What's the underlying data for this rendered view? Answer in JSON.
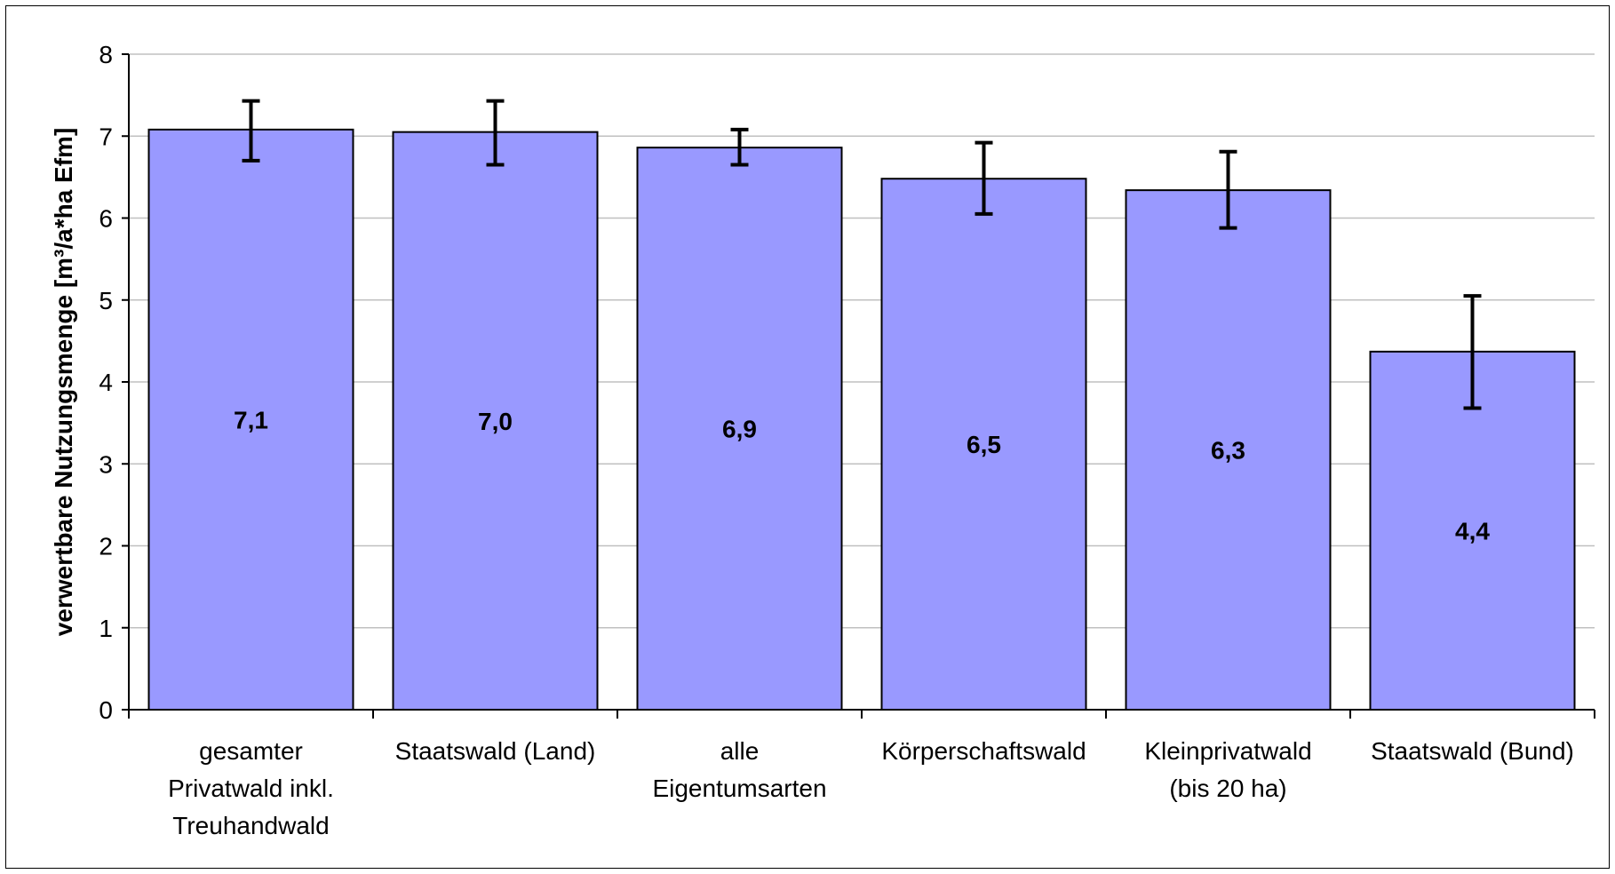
{
  "chart_data": {
    "type": "bar",
    "title": "",
    "xlabel": "",
    "ylabel": "verwertbare Nutzungsmenge [m³/a*ha Efm]",
    "ylim": [
      0,
      8
    ],
    "yticks": [
      "0",
      "1",
      "2",
      "3",
      "4",
      "5",
      "6",
      "7",
      "8"
    ],
    "grid": true,
    "legend": "none",
    "bar_color": "#9999ff",
    "categories": [
      [
        "gesamter",
        "Privatwald inkl.",
        "Treuhandwald"
      ],
      [
        "Staatswald (Land)"
      ],
      [
        "alle",
        "Eigentumsarten"
      ],
      [
        "Körperschaftswald"
      ],
      [
        "Kleinprivatwald",
        "(bis 20 ha)"
      ],
      [
        "Staatswald (Bund)"
      ]
    ],
    "values": [
      7.08,
      7.05,
      6.86,
      6.48,
      6.34,
      4.37
    ],
    "value_labels": [
      "7,1",
      "7,0",
      "6,9",
      "6,5",
      "6,3",
      "4,4"
    ],
    "error_low": [
      6.7,
      6.65,
      6.65,
      6.05,
      5.88,
      3.68
    ],
    "error_high": [
      7.43,
      7.43,
      7.08,
      6.92,
      6.81,
      5.05
    ]
  }
}
